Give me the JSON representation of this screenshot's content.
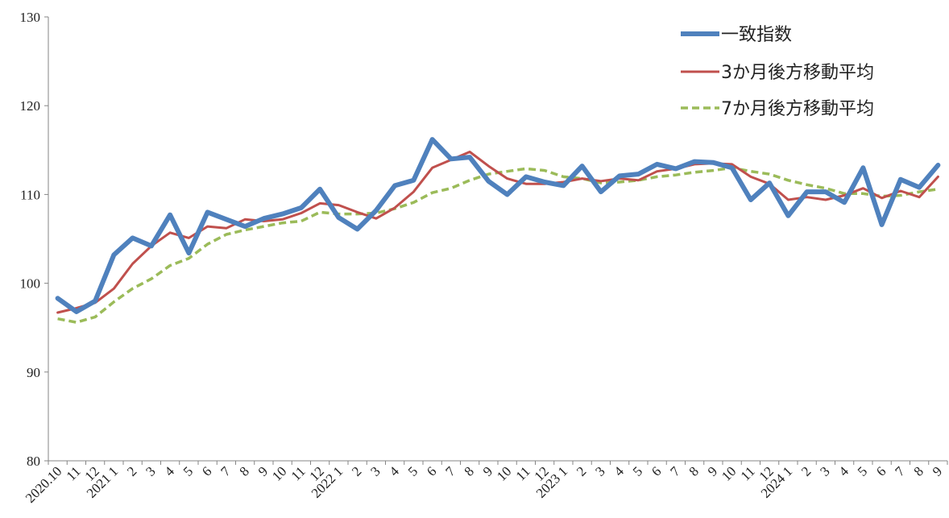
{
  "chart_data": {
    "type": "line",
    "title": "",
    "xlabel": "",
    "ylabel": "",
    "ylim": [
      80,
      130
    ],
    "y_ticks": [
      80,
      90,
      100,
      110,
      120,
      130
    ],
    "grid": false,
    "legend_position": "top-right",
    "categories": [
      "2020.10",
      "11",
      "12",
      "2021 1",
      "2",
      "3",
      "4",
      "5",
      "6",
      "7",
      "8",
      "9",
      "10",
      "11",
      "12",
      "2022 1",
      "2",
      "3",
      "4",
      "5",
      "6",
      "7",
      "8",
      "9",
      "10",
      "11",
      "12",
      "2023 1",
      "2",
      "3",
      "4",
      "5",
      "6",
      "7",
      "8",
      "9",
      "10",
      "11",
      "12",
      "2024 1",
      "2",
      "3",
      "4",
      "5",
      "6",
      "7",
      "8",
      "9"
    ],
    "series": [
      {
        "name": "一致指数",
        "color": "#4F81BD",
        "style": "solid-thick",
        "values": [
          98.3,
          96.8,
          98.0,
          103.2,
          105.1,
          104.2,
          107.7,
          103.4,
          108.0,
          107.2,
          106.4,
          107.3,
          107.8,
          108.5,
          110.6,
          107.4,
          106.1,
          108.2,
          111.0,
          111.6,
          116.2,
          114.0,
          114.2,
          111.5,
          110.0,
          112.0,
          111.4,
          111.0,
          113.2,
          110.3,
          112.1,
          112.3,
          113.4,
          112.9,
          113.7,
          113.6,
          113.0,
          109.4,
          111.3,
          107.6,
          110.3,
          110.3,
          109.1,
          113.0,
          106.6,
          111.7,
          110.8,
          113.3
        ]
      },
      {
        "name": "3か月後方移動平均",
        "color": "#C0504D",
        "style": "solid",
        "values": [
          96.7,
          97.2,
          97.8,
          99.4,
          102.2,
          104.2,
          105.7,
          105.1,
          106.4,
          106.2,
          107.2,
          107.0,
          107.2,
          107.9,
          109.0,
          108.8,
          108.0,
          107.3,
          108.5,
          110.3,
          113.0,
          113.9,
          114.8,
          113.2,
          111.8,
          111.2,
          111.2,
          111.4,
          111.8,
          111.5,
          111.8,
          111.6,
          112.6,
          112.9,
          113.4,
          113.5,
          113.4,
          112.0,
          111.2,
          109.4,
          109.7,
          109.4,
          109.9,
          110.7,
          109.6,
          110.4,
          109.7,
          112.0
        ]
      },
      {
        "name": "7か月後方移動平均",
        "color": "#9BBB59",
        "style": "dashed",
        "values": [
          96.0,
          95.6,
          96.2,
          97.9,
          99.4,
          100.5,
          102.0,
          102.8,
          104.4,
          105.5,
          106.0,
          106.4,
          106.8,
          107.0,
          108.0,
          107.8,
          107.8,
          107.9,
          108.4,
          109.1,
          110.2,
          110.7,
          111.6,
          112.3,
          112.6,
          112.9,
          112.7,
          112.0,
          111.8,
          111.3,
          111.4,
          111.6,
          112.0,
          112.2,
          112.5,
          112.7,
          113.0,
          112.6,
          112.3,
          111.6,
          111.1,
          110.7,
          110.1,
          110.1,
          109.8,
          109.9,
          110.3,
          110.6
        ]
      }
    ]
  }
}
